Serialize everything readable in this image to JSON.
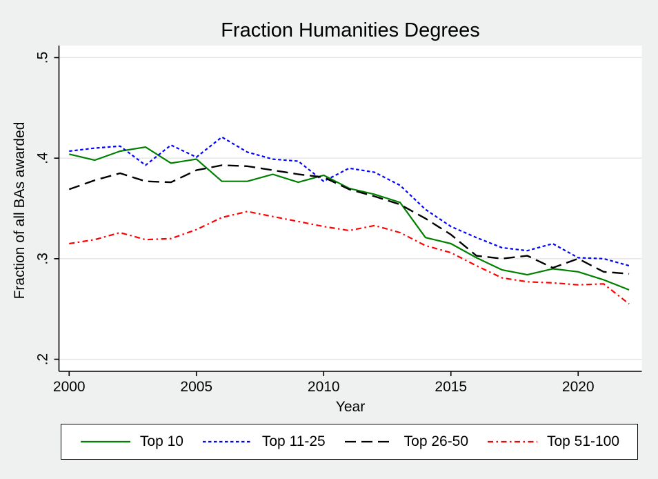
{
  "chart_data": {
    "type": "line",
    "title": "Fraction Humanities Degrees",
    "xlabel": "Year",
    "ylabel": "Fraction of all BAs awarded",
    "x": [
      2000,
      2001,
      2002,
      2003,
      2004,
      2005,
      2006,
      2007,
      2008,
      2009,
      2010,
      2011,
      2012,
      2013,
      2014,
      2015,
      2016,
      2017,
      2018,
      2019,
      2020,
      2021,
      2022
    ],
    "series": [
      {
        "name": "Top 10",
        "color": "#008000",
        "dash": "solid",
        "values": [
          0.404,
          0.398,
          0.407,
          0.411,
          0.395,
          0.399,
          0.377,
          0.377,
          0.384,
          0.376,
          0.383,
          0.37,
          0.364,
          0.356,
          0.321,
          0.315,
          0.301,
          0.289,
          0.284,
          0.29,
          0.287,
          0.279,
          0.269
        ]
      },
      {
        "name": "Top 11-25",
        "color": "#0000ff",
        "dash": "dash",
        "values": [
          0.407,
          0.41,
          0.412,
          0.393,
          0.413,
          0.401,
          0.421,
          0.406,
          0.399,
          0.397,
          0.377,
          0.39,
          0.386,
          0.373,
          0.349,
          0.332,
          0.321,
          0.311,
          0.308,
          0.315,
          0.301,
          0.3,
          0.293
        ]
      },
      {
        "name": "Top 26-50",
        "color": "#000000",
        "dash": "longdash",
        "values": [
          0.369,
          0.378,
          0.385,
          0.377,
          0.376,
          0.388,
          0.393,
          0.392,
          0.388,
          0.384,
          0.381,
          0.369,
          0.362,
          0.354,
          0.34,
          0.324,
          0.303,
          0.3,
          0.303,
          0.291,
          0.3,
          0.287,
          0.285
        ]
      },
      {
        "name": "Top 51-100",
        "color": "#ff0000",
        "dash": "dash_dot",
        "values": [
          0.315,
          0.319,
          0.326,
          0.319,
          0.32,
          0.329,
          0.341,
          0.347,
          0.342,
          0.337,
          0.332,
          0.328,
          0.333,
          0.326,
          0.313,
          0.306,
          0.293,
          0.281,
          0.277,
          0.276,
          0.274,
          0.275,
          0.255
        ]
      }
    ],
    "x_ticks": [
      {
        "value": 2000,
        "label": "2000"
      },
      {
        "value": 2005,
        "label": "2005"
      },
      {
        "value": 2010,
        "label": "2010"
      },
      {
        "value": 2015,
        "label": "2015"
      },
      {
        "value": 2020,
        "label": "2020"
      }
    ],
    "y_ticks": [
      {
        "value": 0.5,
        "label": ".5"
      },
      {
        "value": 0.4,
        "label": ".4"
      },
      {
        "value": 0.3,
        "label": ".3"
      },
      {
        "value": 0.2,
        "label": ".2"
      }
    ],
    "xlim": [
      1999.6,
      2022.5
    ],
    "ylim": [
      0.188,
      0.512
    ],
    "grid": "horizontal",
    "legend_position": "bottom",
    "page_bg": "#eff0f0",
    "plot_bg": "#ffffff",
    "grid_color": "#e4e4e4",
    "axis_color": "#000000"
  }
}
